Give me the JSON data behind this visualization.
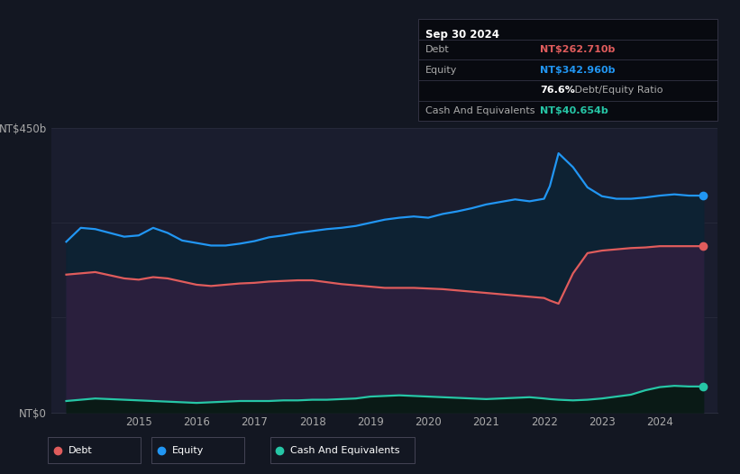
{
  "bg_color": "#131722",
  "plot_bg_color": "#1a1d2e",
  "debt_color": "#e05c5c",
  "equity_color": "#2196f3",
  "cash_color": "#26c6a6",
  "equity_fill": "#0d2233",
  "debt_fill": "#2a1f3d",
  "cash_fill": "#0a1a16",
  "grid_color": "#2a2d3e",
  "text_color": "#aaaaaa",
  "title": "Sep 30 2024",
  "debt_label": "Debt",
  "equity_label": "Equity",
  "cash_label": "Cash And Equivalents",
  "debt_value": "NT$262.710b",
  "equity_value": "NT$342.960b",
  "ratio_value": "76.6%",
  "ratio_label": " Debt/Equity Ratio",
  "cash_value": "NT$40.654b",
  "ylabel_top": "NT$450b",
  "ylabel_bottom": "NT$0",
  "xlim_start": 2013.5,
  "xlim_end": 2025.0,
  "ylim_max": 450,
  "xtick_years": [
    2015,
    2016,
    2017,
    2018,
    2019,
    2020,
    2021,
    2022,
    2023,
    2024
  ],
  "years": [
    2013.75,
    2014.0,
    2014.25,
    2014.5,
    2014.75,
    2015.0,
    2015.25,
    2015.5,
    2015.75,
    2016.0,
    2016.25,
    2016.5,
    2016.75,
    2017.0,
    2017.25,
    2017.5,
    2017.75,
    2018.0,
    2018.25,
    2018.5,
    2018.75,
    2019.0,
    2019.25,
    2019.5,
    2019.75,
    2020.0,
    2020.25,
    2020.5,
    2020.75,
    2021.0,
    2021.25,
    2021.5,
    2021.75,
    2022.0,
    2022.1,
    2022.25,
    2022.5,
    2022.75,
    2023.0,
    2023.25,
    2023.5,
    2023.75,
    2024.0,
    2024.25,
    2024.5,
    2024.75
  ],
  "equity": [
    270,
    292,
    290,
    284,
    278,
    280,
    292,
    284,
    272,
    268,
    264,
    264,
    267,
    271,
    277,
    280,
    284,
    287,
    290,
    292,
    295,
    300,
    305,
    308,
    310,
    308,
    314,
    318,
    323,
    329,
    333,
    337,
    334,
    338,
    358,
    410,
    388,
    356,
    342,
    338,
    338,
    340,
    343,
    345,
    343,
    343
  ],
  "debt": [
    218,
    220,
    222,
    217,
    212,
    210,
    214,
    212,
    207,
    202,
    200,
    202,
    204,
    205,
    207,
    208,
    209,
    209,
    206,
    203,
    201,
    199,
    197,
    197,
    197,
    196,
    195,
    193,
    191,
    189,
    187,
    185,
    183,
    181,
    177,
    172,
    220,
    252,
    256,
    258,
    260,
    261,
    263,
    263,
    263,
    263
  ],
  "cash": [
    18,
    20,
    22,
    21,
    20,
    19,
    18,
    17,
    16,
    15,
    16,
    17,
    18,
    18,
    18,
    19,
    19,
    20,
    20,
    21,
    22,
    25,
    26,
    27,
    26,
    25,
    24,
    23,
    22,
    21,
    22,
    23,
    24,
    22,
    21,
    20,
    19,
    20,
    22,
    25,
    28,
    35,
    40,
    42,
    41,
    41
  ]
}
